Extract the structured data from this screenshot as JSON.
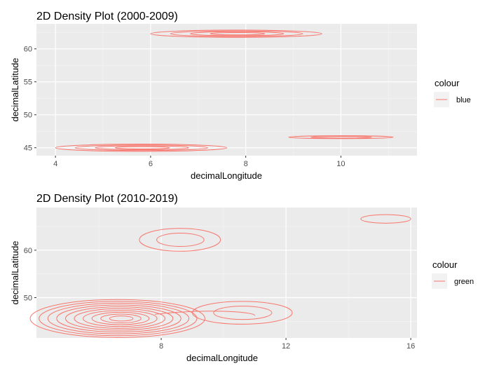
{
  "chart_data": [
    {
      "type": "density2d",
      "title": "2D Density Plot (2000-2009)",
      "xlabel": "decimalLongitude",
      "ylabel": "decimalLatitude",
      "xlim": [
        3.6,
        11.6
      ],
      "ylim": [
        43.8,
        63.8
      ],
      "x_ticks": [
        4,
        6,
        8,
        10
      ],
      "y_ticks": [
        45,
        50,
        55,
        60
      ],
      "grid": true,
      "legend": {
        "title": "colour",
        "position": "right",
        "entries": [
          {
            "label": "blue",
            "color": "#F8766D"
          }
        ]
      },
      "line_color": "#F8766D",
      "contours": [
        {
          "cx": 5.8,
          "cy": 45.0,
          "rx": 1.8,
          "ry": 0.55,
          "levels": 4
        },
        {
          "cx": 7.8,
          "cy": 62.3,
          "rx": 1.8,
          "ry": 0.55,
          "levels": 4
        },
        {
          "cx": 10.0,
          "cy": 46.6,
          "rx": 1.1,
          "ry": 0.22,
          "levels": 2
        }
      ]
    },
    {
      "type": "density2d",
      "title": "2D Density Plot (2010-2019)",
      "xlabel": "decimalLongitude",
      "ylabel": "decimalLatitude",
      "xlim": [
        4.0,
        16.2
      ],
      "ylim": [
        41.5,
        69.0
      ],
      "x_ticks": [
        8,
        12,
        16
      ],
      "y_ticks": [
        50,
        60
      ],
      "grid": true,
      "legend": {
        "title": "colour",
        "position": "right",
        "entries": [
          {
            "label": "green",
            "color": "#F8766D"
          }
        ]
      },
      "line_color": "#F8766D",
      "contours": [
        {
          "cx": 6.6,
          "cy": 45.6,
          "rx": 2.8,
          "ry": 4.0,
          "levels": 10
        },
        {
          "cx": 10.6,
          "cy": 46.8,
          "rx": 1.6,
          "ry": 2.4,
          "levels": 2
        },
        {
          "cx": 8.6,
          "cy": 62.2,
          "rx": 1.3,
          "ry": 2.4,
          "levels": 2
        },
        {
          "cx": 15.2,
          "cy": 66.6,
          "rx": 0.8,
          "ry": 0.9,
          "levels": 1
        }
      ],
      "bridge": {
        "x0": 7.8,
        "x1": 11.0,
        "y": 45.6
      }
    }
  ]
}
